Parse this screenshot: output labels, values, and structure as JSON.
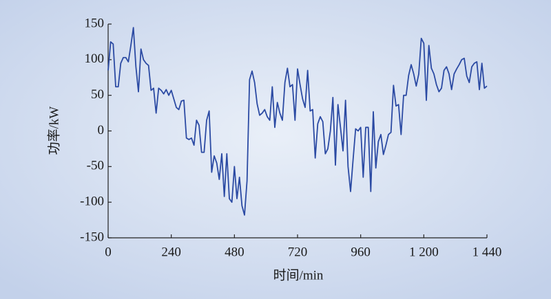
{
  "chart_data": {
    "type": "line",
    "xlabel": "时间/min",
    "ylabel": "功率/kW",
    "color": "#2b4aa3",
    "xlim": [
      0,
      1440
    ],
    "xticks": [
      0,
      240,
      480,
      720,
      960,
      {
        "value": 1200,
        "label": "1 200"
      },
      {
        "value": 1440,
        "label": "1 440"
      }
    ],
    "ylim": [
      -150,
      150
    ],
    "yticks": [
      -150,
      -100,
      -50,
      0,
      50,
      100,
      150
    ],
    "grid": false,
    "x": [
      0,
      9.6,
      19.2,
      28.8,
      38.4,
      48,
      57.6,
      67.2,
      76.8,
      86.4,
      96,
      105.6,
      115.2,
      124.8,
      134.4,
      144,
      153.6,
      163.2,
      172.8,
      182.4,
      192,
      201.6,
      211.2,
      220.8,
      230.4,
      240,
      249.6,
      259.2,
      268.8,
      278.4,
      288,
      297.6,
      307.2,
      316.8,
      326.4,
      336,
      345.6,
      355.2,
      364.8,
      374.4,
      384,
      393.6,
      403.2,
      412.8,
      422.4,
      432,
      441.6,
      451.2,
      460.8,
      470.4,
      480,
      489.6,
      499.2,
      508.8,
      518.4,
      528,
      537.6,
      547.2,
      556.8,
      566.4,
      576,
      585.6,
      595.2,
      604.8,
      614.4,
      624,
      633.6,
      643.2,
      652.8,
      662.4,
      672,
      681.6,
      691.2,
      700.8,
      710.4,
      720,
      729.6,
      739.2,
      748.8,
      758.4,
      768,
      777.6,
      787.2,
      796.8,
      806.4,
      816,
      825.6,
      835.2,
      844.8,
      854.4,
      864,
      873.6,
      883.2,
      892.8,
      902.4,
      912,
      921.6,
      931.2,
      940.8,
      950.4,
      960,
      969.6,
      979.2,
      988.8,
      998.4,
      1008,
      1017.6,
      1027.2,
      1036.8,
      1046.4,
      1056,
      1065.6,
      1075.2,
      1084.8,
      1094.4,
      1104,
      1113.6,
      1123.2,
      1132.8,
      1142.4,
      1152,
      1161.6,
      1171.2,
      1180.8,
      1190.4,
      1200,
      1209.6,
      1219.2,
      1228.8,
      1238.4,
      1248,
      1257.6,
      1267.2,
      1276.8,
      1286.4,
      1296,
      1305.6,
      1315.2,
      1324.8,
      1334.4,
      1344,
      1353.6,
      1363.2,
      1372.8,
      1382.4,
      1392,
      1401.6,
      1411.2,
      1420.8,
      1430.4,
      1440
    ],
    "values": [
      85,
      125,
      122,
      62,
      62,
      95,
      103,
      103,
      97,
      120,
      145,
      90,
      55,
      115,
      100,
      95,
      92,
      57,
      60,
      25,
      60,
      57,
      52,
      58,
      50,
      57,
      45,
      33,
      30,
      42,
      43,
      -10,
      -12,
      -10,
      -20,
      15,
      8,
      -30,
      -30,
      15,
      28,
      -58,
      -35,
      -45,
      -68,
      -32,
      -92,
      -32,
      -95,
      -100,
      -50,
      -95,
      -65,
      -105,
      -118,
      -70,
      72,
      84,
      68,
      38,
      22,
      25,
      30,
      20,
      15,
      62,
      5,
      40,
      25,
      15,
      68,
      88,
      62,
      65,
      15,
      87,
      65,
      45,
      33,
      85,
      28,
      30,
      -38,
      10,
      20,
      13,
      -32,
      -25,
      0,
      47,
      -48,
      37,
      5,
      -28,
      43,
      -50,
      -85,
      -40,
      3,
      0,
      5,
      -65,
      5,
      5,
      -85,
      27,
      -52,
      -15,
      -5,
      -33,
      -20,
      -5,
      -2,
      64,
      35,
      37,
      -5,
      50,
      50,
      78,
      93,
      80,
      63,
      80,
      130,
      123,
      43,
      120,
      88,
      80,
      65,
      55,
      60,
      85,
      90,
      80,
      58,
      80,
      87,
      93,
      100,
      102,
      77,
      68,
      90,
      95,
      97,
      58,
      95,
      60,
      63
    ]
  }
}
